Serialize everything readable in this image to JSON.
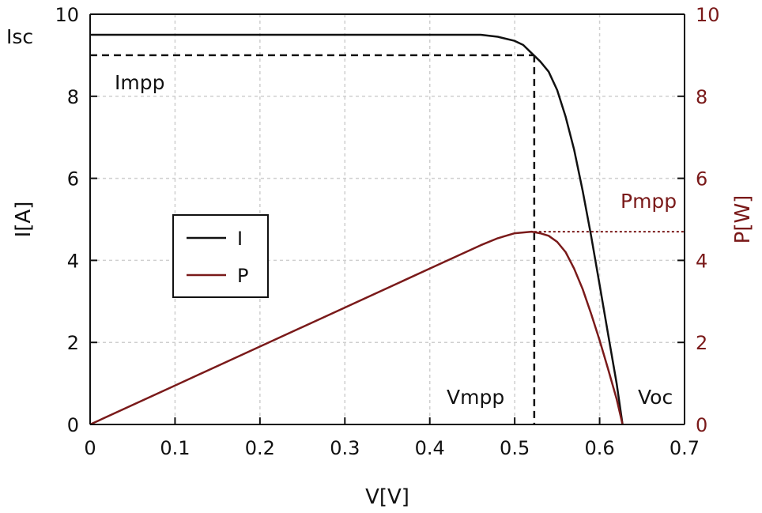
{
  "chart_data": {
    "type": "line",
    "xlabel": "V[V]",
    "ylabel_left": "I[A]",
    "ylabel_right": "P[W]",
    "xlim": [
      0,
      0.7
    ],
    "ylim_left": [
      0,
      10
    ],
    "ylim_right": [
      0,
      10
    ],
    "x_ticks": [
      "0",
      "0.1",
      "0.2",
      "0.3",
      "0.4",
      "0.5",
      "0.6",
      "0.7"
    ],
    "y_ticks_left": [
      "0",
      "2",
      "4",
      "6",
      "8",
      "10"
    ],
    "y_ticks_right": [
      "0",
      "2",
      "4",
      "6",
      "8",
      "10"
    ],
    "grid": true,
    "legend_position": "middle-left",
    "series": [
      {
        "name": "I",
        "axis": "left",
        "color": "#111111",
        "points": [
          [
            0,
            9.5
          ],
          [
            0.46,
            9.5
          ],
          [
            0.48,
            9.45
          ],
          [
            0.5,
            9.35
          ],
          [
            0.51,
            9.25
          ],
          [
            0.52,
            9.05
          ],
          [
            0.53,
            8.85
          ],
          [
            0.54,
            8.6
          ],
          [
            0.55,
            8.15
          ],
          [
            0.56,
            7.5
          ],
          [
            0.57,
            6.7
          ],
          [
            0.58,
            5.7
          ],
          [
            0.59,
            4.6
          ],
          [
            0.6,
            3.4
          ],
          [
            0.61,
            2.2
          ],
          [
            0.62,
            1.0
          ],
          [
            0.627,
            0.0
          ]
        ]
      },
      {
        "name": "P",
        "axis": "right",
        "color": "#7a1a1a",
        "points": [
          [
            0,
            0
          ],
          [
            0.1,
            0.95
          ],
          [
            0.2,
            1.9
          ],
          [
            0.3,
            2.85
          ],
          [
            0.4,
            3.8
          ],
          [
            0.46,
            4.37
          ],
          [
            0.48,
            4.54
          ],
          [
            0.5,
            4.66
          ],
          [
            0.52,
            4.7
          ],
          [
            0.53,
            4.66
          ],
          [
            0.54,
            4.6
          ],
          [
            0.55,
            4.45
          ],
          [
            0.56,
            4.2
          ],
          [
            0.57,
            3.8
          ],
          [
            0.58,
            3.3
          ],
          [
            0.59,
            2.7
          ],
          [
            0.6,
            2.05
          ],
          [
            0.61,
            1.35
          ],
          [
            0.62,
            0.62
          ],
          [
            0.627,
            0.0
          ]
        ]
      }
    ],
    "annotations": {
      "isc": {
        "label": "Isc",
        "value": 9.5
      },
      "impp": {
        "label": "Impp",
        "value": 9.0
      },
      "vmpp": {
        "label": "Vmpp",
        "value": 0.523
      },
      "voc": {
        "label": "Voc",
        "value": 0.627
      },
      "pmpp": {
        "label": "Pmpp",
        "value": 4.7
      }
    }
  },
  "colors": {
    "current": "#111111",
    "power": "#7a1a1a",
    "grid": "#cfcfcf",
    "axis": "#111111"
  }
}
